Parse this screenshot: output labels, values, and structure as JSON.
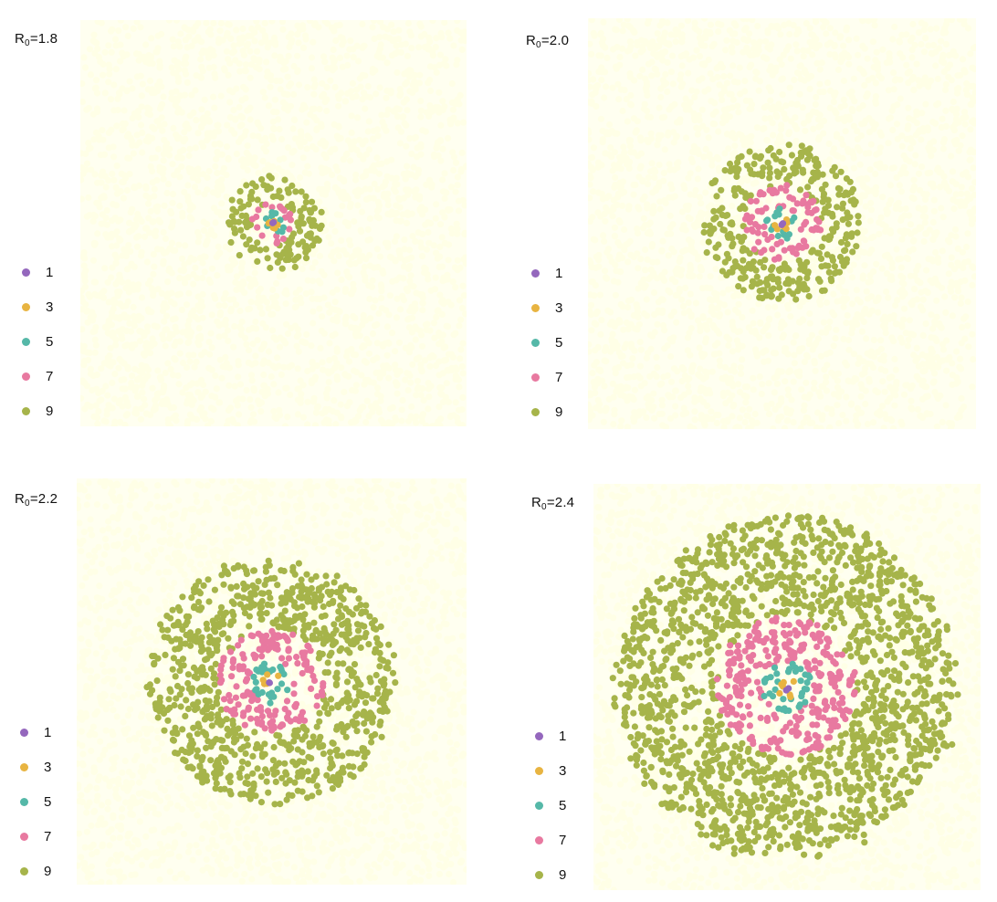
{
  "chart_data": [
    {
      "type": "scatter",
      "panel_label": {
        "prefix": "R",
        "sub": "0",
        "suffix": "=1.8"
      },
      "legend_position": "left",
      "legend_entries": [
        "1",
        "3",
        "5",
        "7",
        "9"
      ],
      "series_colors": [
        "#9467bd",
        "#e8b441",
        "#55b8a8",
        "#e879a0",
        "#a6b44a"
      ],
      "background_color": "#ffffe6",
      "ring_outer_radii": [
        0.01,
        0.028,
        0.065,
        0.11,
        0.255
      ]
    },
    {
      "type": "scatter",
      "panel_label": {
        "prefix": "R",
        "sub": "0",
        "suffix": "=2.0"
      },
      "legend_position": "left",
      "legend_entries": [
        "1",
        "3",
        "5",
        "7",
        "9"
      ],
      "series_colors": [
        "#9467bd",
        "#e8b441",
        "#55b8a8",
        "#e879a0",
        "#a6b44a"
      ],
      "background_color": "#ffffe6",
      "ring_outer_radii": [
        0.012,
        0.04,
        0.085,
        0.2,
        0.41
      ]
    },
    {
      "type": "scatter",
      "panel_label": {
        "prefix": "R",
        "sub": "0",
        "suffix": "=2.2"
      },
      "legend_position": "left",
      "legend_entries": [
        "1",
        "3",
        "5",
        "7",
        "9"
      ],
      "series_colors": [
        "#9467bd",
        "#e8b441",
        "#55b8a8",
        "#e879a0",
        "#a6b44a"
      ],
      "background_color": "#ffffe6",
      "ring_outer_radii": [
        0.015,
        0.045,
        0.11,
        0.27,
        0.63
      ]
    },
    {
      "type": "scatter",
      "panel_label": {
        "prefix": "R",
        "sub": "0",
        "suffix": "=2.4"
      },
      "legend_position": "left",
      "legend_entries": [
        "1",
        "3",
        "5",
        "7",
        "9"
      ],
      "series_colors": [
        "#9467bd",
        "#e8b441",
        "#55b8a8",
        "#e879a0",
        "#a6b44a"
      ],
      "background_color": "#ffffe6",
      "ring_outer_radii": [
        0.018,
        0.055,
        0.13,
        0.36,
        0.88
      ]
    }
  ]
}
